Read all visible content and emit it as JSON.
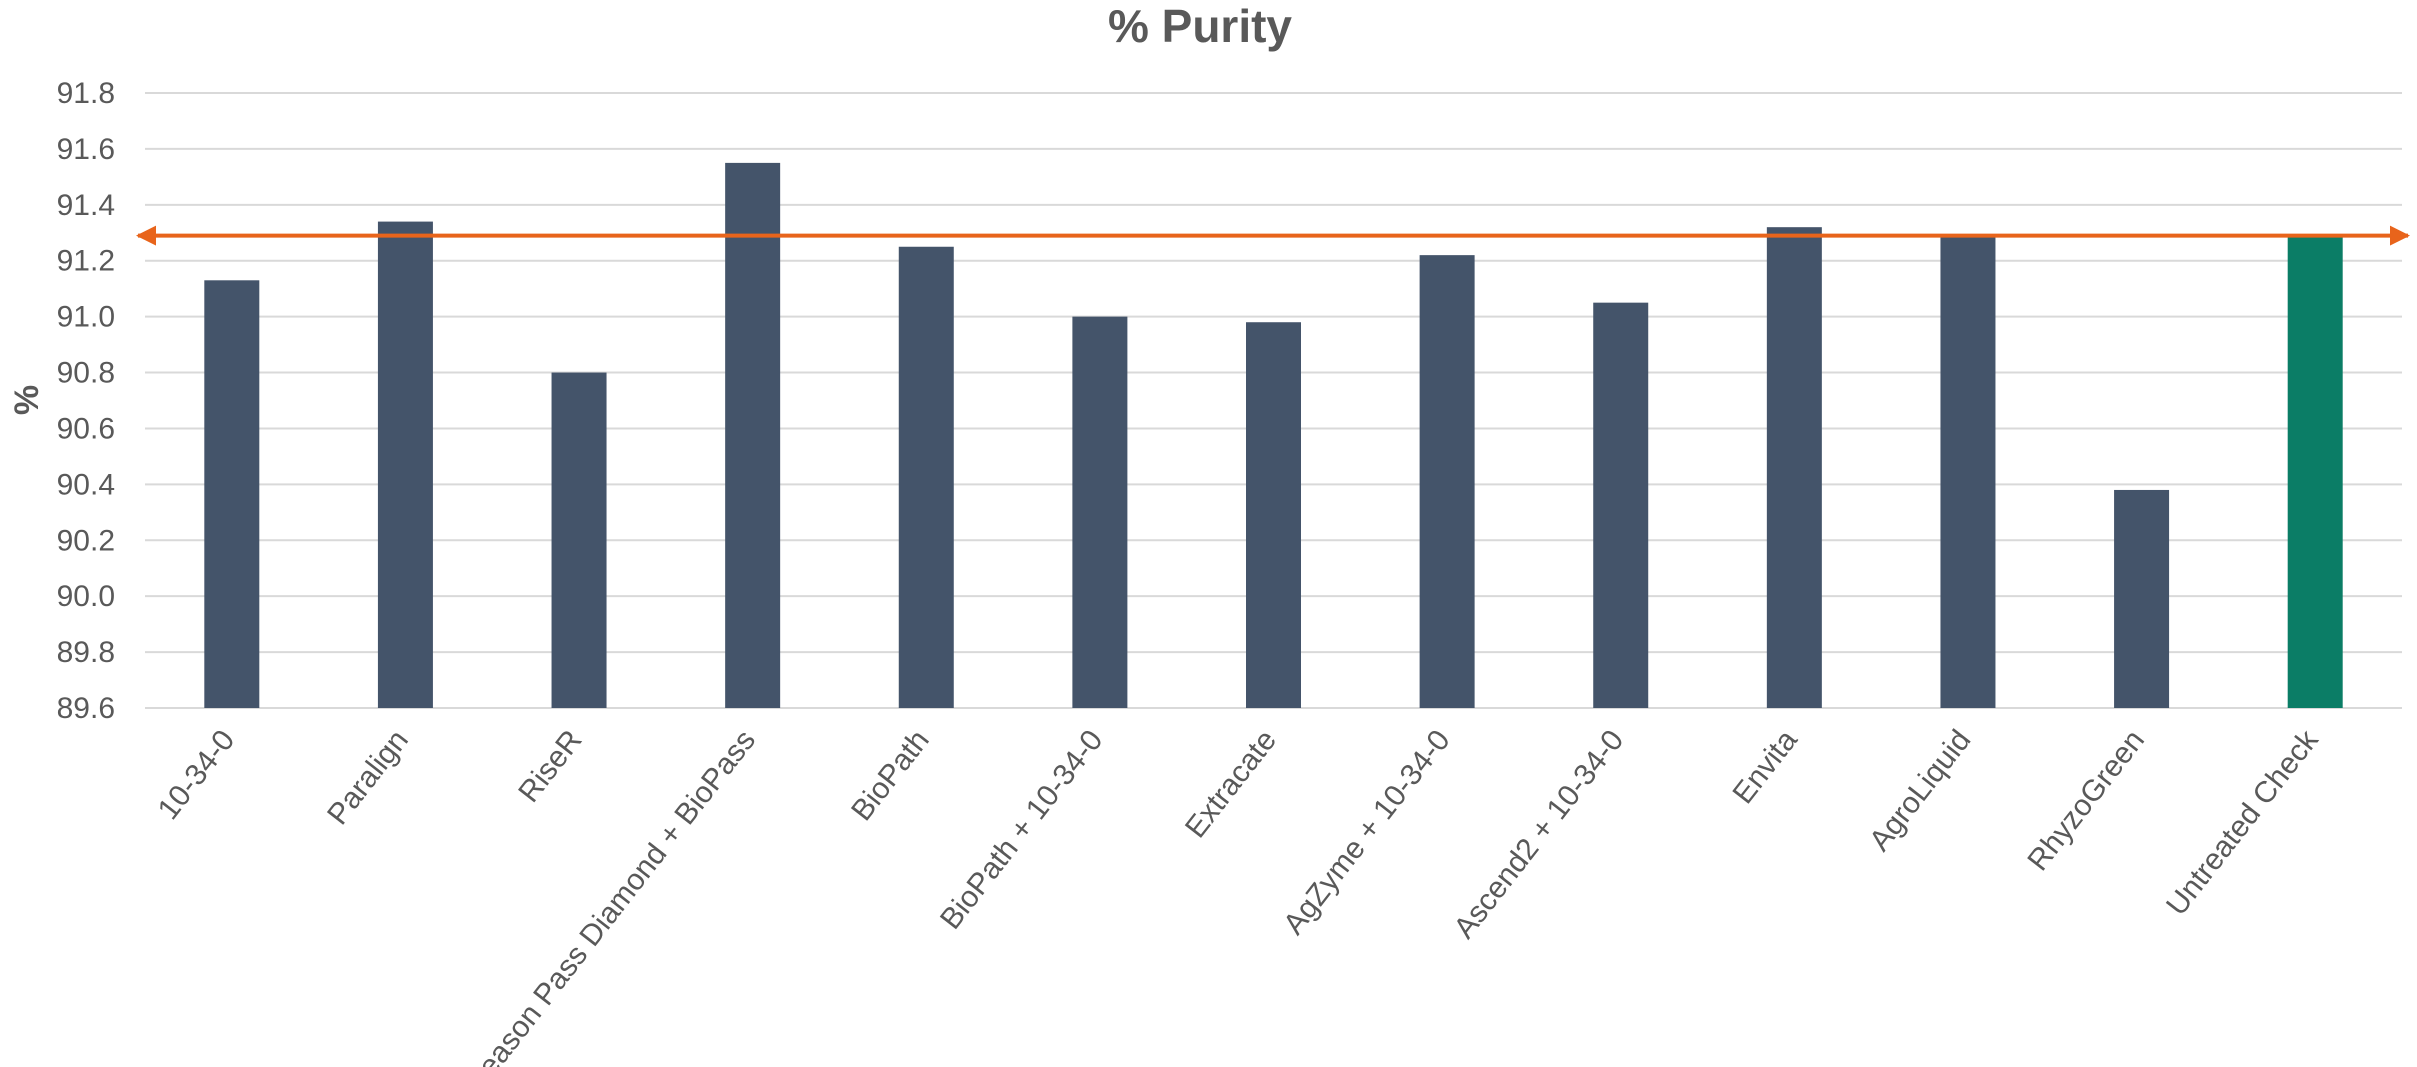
{
  "chart_data": {
    "type": "bar",
    "title": "% Purity",
    "xlabel": "",
    "ylabel": "%",
    "ylim": [
      89.6,
      91.8
    ],
    "y_ticks": [
      "89.6",
      "89.8",
      "90.0",
      "90.2",
      "90.4",
      "90.6",
      "90.8",
      "91.0",
      "91.2",
      "91.4",
      "91.6",
      "91.8"
    ],
    "grid": true,
    "categories": [
      "10-34-0",
      "Paralign",
      "RiseR",
      "Season Pass Diamond + BioPass",
      "BioPath",
      "BioPath + 10-34-0",
      "Extracate",
      "AgZyme + 10-34-0",
      "Ascend2 + 10-34-0",
      "Envita",
      "AgroLiquid",
      "RhyzoGreen",
      "Untreated Check"
    ],
    "values": [
      91.13,
      91.34,
      90.8,
      91.55,
      91.25,
      91.0,
      90.98,
      91.22,
      91.05,
      91.32,
      91.29,
      90.38,
      91.29
    ],
    "bar_colors": [
      "#44546a",
      "#44546a",
      "#44546a",
      "#44546a",
      "#44546a",
      "#44546a",
      "#44546a",
      "#44546a",
      "#44546a",
      "#44546a",
      "#44546a",
      "#44546a",
      "#0b7d66"
    ],
    "reference_line": {
      "value": 91.29,
      "color": "#e8641b",
      "arrowheads": "both"
    }
  }
}
